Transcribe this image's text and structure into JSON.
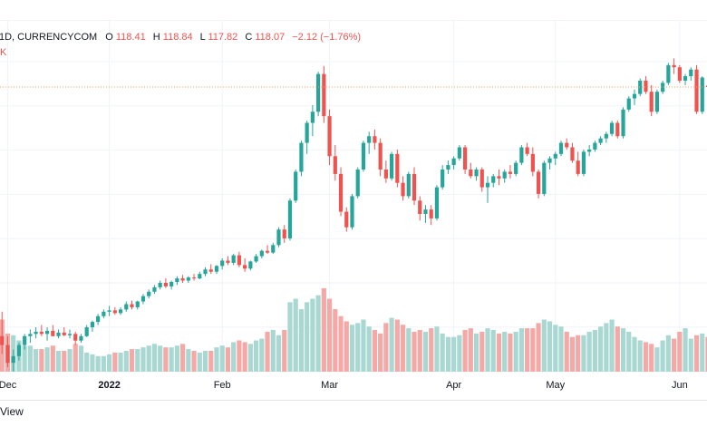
{
  "header": {
    "symbol": "1D, CURRENCYCOM",
    "o_label": "O",
    "o_value": "118.41",
    "h_label": "H",
    "h_value": "118.84",
    "l_label": "L",
    "l_value": "117.82",
    "c_label": "C",
    "c_value": "118.07",
    "change": "−2.12 (−1.76%)",
    "volume_tag": "K"
  },
  "footer": {
    "text": "View"
  },
  "colors": {
    "up": "#26a69a",
    "down": "#ef5350",
    "vol_up": "#a9d8d3",
    "vol_down": "#f4a9a7",
    "last_line": "#f7a35c",
    "grid": "#f0f3fa"
  },
  "chart_data": {
    "type": "candlestick",
    "x_ticks": [
      {
        "label": "Dec",
        "bar": 2
      },
      {
        "label": "2022",
        "bold": true,
        "bar": 20
      },
      {
        "label": "Feb",
        "bar": 40
      },
      {
        "label": "Mar",
        "bar": 59
      },
      {
        "label": "Apr",
        "bar": 81
      },
      {
        "label": "May",
        "bar": 99
      },
      {
        "label": "Jun",
        "bar": 121
      }
    ],
    "y_range": [
      54,
      125
    ],
    "last_price": 118.07,
    "candles": [
      [
        62.5,
        65.0,
        57.0,
        62.0
      ],
      [
        62.0,
        67.5,
        58.0,
        60.0
      ],
      [
        60.0,
        62.0,
        55.0,
        56.0
      ],
      [
        56.0,
        59.0,
        54.0,
        57.5
      ],
      [
        57.5,
        60.5,
        56.5,
        60.0
      ],
      [
        60.0,
        62.5,
        59.0,
        62.0
      ],
      [
        62.0,
        63.5,
        60.5,
        62.5
      ],
      [
        62.5,
        64.0,
        61.5,
        63.0
      ],
      [
        63.0,
        64.5,
        62.0,
        62.5
      ],
      [
        62.5,
        64.0,
        61.0,
        63.2
      ],
      [
        63.2,
        64.5,
        62.0,
        62.0
      ],
      [
        62.0,
        63.5,
        61.5,
        62.8
      ],
      [
        62.8,
        64.0,
        62.0,
        62.2
      ],
      [
        62.2,
        63.5,
        61.5,
        62.5
      ],
      [
        62.5,
        63.0,
        60.0,
        61.0
      ],
      [
        61.0,
        62.5,
        60.5,
        62.0
      ],
      [
        62.0,
        64.5,
        61.8,
        64.0
      ],
      [
        64.0,
        65.5,
        63.0,
        65.2
      ],
      [
        65.2,
        67.0,
        64.5,
        66.5
      ],
      [
        66.5,
        68.0,
        66.0,
        67.5
      ],
      [
        67.5,
        68.8,
        66.5,
        67.8
      ],
      [
        67.8,
        68.5,
        66.8,
        67.2
      ],
      [
        67.2,
        68.5,
        66.8,
        68.0
      ],
      [
        68.0,
        69.8,
        67.5,
        69.2
      ],
      [
        69.2,
        70.0,
        68.0,
        68.5
      ],
      [
        68.5,
        70.0,
        68.0,
        69.8
      ],
      [
        69.8,
        71.5,
        69.2,
        71.0
      ],
      [
        71.0,
        72.5,
        70.5,
        72.0
      ],
      [
        72.0,
        73.5,
        71.5,
        73.0
      ],
      [
        73.0,
        74.5,
        72.5,
        74.0
      ],
      [
        74.0,
        75.0,
        72.8,
        73.2
      ],
      [
        73.2,
        74.5,
        72.5,
        74.2
      ],
      [
        74.2,
        75.5,
        73.5,
        75.0
      ],
      [
        75.0,
        75.8,
        74.0,
        74.5
      ],
      [
        74.5,
        75.5,
        74.0,
        75.2
      ],
      [
        75.2,
        76.0,
        74.5,
        75.0
      ],
      [
        75.0,
        76.5,
        74.8,
        76.0
      ],
      [
        76.0,
        77.5,
        75.5,
        77.0
      ],
      [
        77.0,
        78.2,
        76.0,
        76.5
      ],
      [
        76.5,
        78.0,
        76.0,
        77.8
      ],
      [
        77.8,
        79.5,
        77.0,
        79.0
      ],
      [
        79.0,
        80.0,
        78.0,
        78.5
      ],
      [
        78.5,
        80.5,
        78.0,
        80.2
      ],
      [
        80.2,
        81.0,
        77.5,
        78.0
      ],
      [
        78.0,
        79.5,
        76.5,
        77.2
      ],
      [
        77.2,
        79.0,
        76.8,
        78.8
      ],
      [
        78.8,
        80.5,
        78.5,
        80.0
      ],
      [
        80.0,
        81.5,
        79.5,
        81.2
      ],
      [
        81.2,
        82.5,
        80.5,
        80.8
      ],
      [
        80.8,
        83.0,
        80.5,
        82.5
      ],
      [
        82.5,
        86.5,
        82.0,
        86.0
      ],
      [
        86.0,
        87.0,
        83.0,
        84.0
      ],
      [
        84.0,
        93.0,
        83.5,
        92.5
      ],
      [
        92.5,
        99.5,
        92.0,
        99.0
      ],
      [
        99.0,
        106.0,
        98.0,
        105.5
      ],
      [
        105.5,
        110.5,
        103.0,
        110.0
      ],
      [
        110.0,
        114.0,
        107.0,
        112.5
      ],
      [
        112.5,
        121.5,
        111.5,
        121.0
      ],
      [
        121.0,
        122.8,
        110.0,
        111.5
      ],
      [
        111.5,
        113.0,
        100.5,
        102.5
      ],
      [
        102.5,
        105.0,
        97.0,
        98.5
      ],
      [
        98.5,
        100.0,
        89.0,
        90.0
      ],
      [
        90.0,
        91.0,
        85.5,
        86.5
      ],
      [
        86.5,
        94.0,
        86.0,
        93.5
      ],
      [
        93.5,
        100.0,
        93.0,
        99.5
      ],
      [
        99.5,
        106.0,
        99.0,
        105.5
      ],
      [
        105.5,
        108.0,
        103.0,
        107.0
      ],
      [
        107.0,
        108.5,
        104.0,
        105.5
      ],
      [
        105.5,
        106.5,
        98.0,
        99.5
      ],
      [
        99.5,
        101.5,
        96.5,
        97.5
      ],
      [
        97.5,
        103.5,
        97.0,
        103.0
      ],
      [
        103.0,
        104.0,
        95.5,
        96.5
      ],
      [
        96.5,
        98.0,
        92.5,
        93.5
      ],
      [
        93.5,
        99.0,
        93.0,
        98.5
      ],
      [
        98.5,
        100.0,
        91.5,
        92.5
      ],
      [
        92.5,
        93.5,
        88.0,
        89.5
      ],
      [
        89.5,
        91.5,
        87.5,
        90.5
      ],
      [
        90.5,
        91.5,
        87.0,
        88.5
      ],
      [
        88.5,
        96.0,
        88.0,
        95.5
      ],
      [
        95.5,
        100.5,
        95.0,
        99.5
      ],
      [
        99.5,
        101.5,
        98.5,
        100.5
      ],
      [
        100.5,
        102.5,
        99.5,
        102.0
      ],
      [
        102.0,
        105.0,
        101.5,
        104.5
      ],
      [
        104.5,
        105.0,
        98.5,
        99.5
      ],
      [
        99.5,
        101.0,
        97.5,
        98.0
      ],
      [
        98.0,
        100.0,
        97.0,
        99.5
      ],
      [
        99.5,
        100.0,
        94.5,
        95.5
      ],
      [
        95.5,
        98.0,
        92.0,
        96.5
      ],
      [
        96.5,
        98.5,
        95.5,
        98.0
      ],
      [
        98.0,
        99.5,
        96.0,
        97.5
      ],
      [
        97.5,
        99.5,
        96.5,
        99.0
      ],
      [
        99.0,
        100.5,
        97.5,
        98.5
      ],
      [
        98.5,
        101.5,
        98.0,
        101.0
      ],
      [
        101.0,
        105.0,
        100.5,
        104.5
      ],
      [
        104.5,
        105.5,
        102.5,
        103.0
      ],
      [
        103.0,
        104.5,
        98.0,
        99.0
      ],
      [
        99.0,
        99.5,
        93.0,
        94.0
      ],
      [
        94.0,
        101.5,
        93.5,
        101.0
      ],
      [
        101.0,
        102.5,
        99.5,
        102.0
      ],
      [
        102.0,
        103.5,
        100.5,
        103.0
      ],
      [
        103.0,
        106.0,
        102.5,
        105.5
      ],
      [
        105.5,
        106.5,
        104.0,
        104.5
      ],
      [
        104.5,
        105.5,
        101.0,
        101.5
      ],
      [
        101.5,
        103.5,
        98.0,
        98.5
      ],
      [
        98.5,
        104.0,
        98.0,
        103.5
      ],
      [
        103.5,
        105.0,
        102.5,
        104.0
      ],
      [
        104.0,
        106.0,
        103.5,
        105.5
      ],
      [
        105.5,
        107.0,
        105.0,
        106.5
      ],
      [
        106.5,
        108.0,
        105.5,
        107.5
      ],
      [
        107.5,
        110.5,
        107.0,
        110.0
      ],
      [
        110.0,
        110.5,
        106.5,
        107.0
      ],
      [
        107.0,
        113.5,
        106.5,
        113.0
      ],
      [
        113.0,
        116.0,
        112.5,
        115.5
      ],
      [
        115.5,
        117.5,
        114.0,
        116.5
      ],
      [
        116.5,
        120.0,
        116.0,
        119.5
      ],
      [
        119.5,
        120.5,
        116.5,
        117.0
      ],
      [
        117.0,
        118.5,
        111.5,
        112.5
      ],
      [
        112.5,
        117.5,
        112.0,
        117.0
      ],
      [
        117.0,
        119.5,
        116.5,
        119.0
      ],
      [
        119.0,
        123.5,
        118.5,
        123.0
      ],
      [
        123.0,
        124.5,
        121.0,
        122.5
      ],
      [
        122.5,
        123.0,
        119.0,
        119.5
      ],
      [
        119.5,
        121.0,
        118.5,
        120.5
      ],
      [
        120.5,
        122.5,
        119.5,
        122.0
      ],
      [
        122.0,
        123.0,
        112.0,
        112.5
      ],
      [
        112.5,
        120.5,
        112.0,
        120.2
      ],
      [
        118.41,
        118.84,
        117.82,
        118.07
      ]
    ],
    "volume": [
      52,
      60,
      44,
      42,
      36,
      30,
      30,
      26,
      26,
      28,
      30,
      24,
      24,
      26,
      32,
      30,
      22,
      20,
      18,
      18,
      20,
      22,
      22,
      24,
      26,
      26,
      28,
      30,
      32,
      30,
      28,
      28,
      30,
      32,
      26,
      24,
      22,
      24,
      24,
      28,
      30,
      28,
      34,
      36,
      34,
      32,
      36,
      38,
      46,
      48,
      42,
      48,
      80,
      84,
      72,
      80,
      84,
      88,
      96,
      84,
      72,
      64,
      58,
      54,
      56,
      60,
      52,
      48,
      44,
      56,
      62,
      60,
      54,
      50,
      46,
      48,
      46,
      50,
      52,
      44,
      40,
      40,
      42,
      48,
      50,
      44,
      46,
      50,
      48,
      44,
      46,
      44,
      46,
      50,
      50,
      50,
      56,
      60,
      58,
      54,
      52,
      46,
      40,
      42,
      42,
      46,
      48,
      52,
      56,
      60,
      52,
      50,
      46,
      40,
      36,
      34,
      32,
      28,
      36,
      42,
      38,
      46,
      50,
      38,
      42,
      44,
      40
    ]
  }
}
